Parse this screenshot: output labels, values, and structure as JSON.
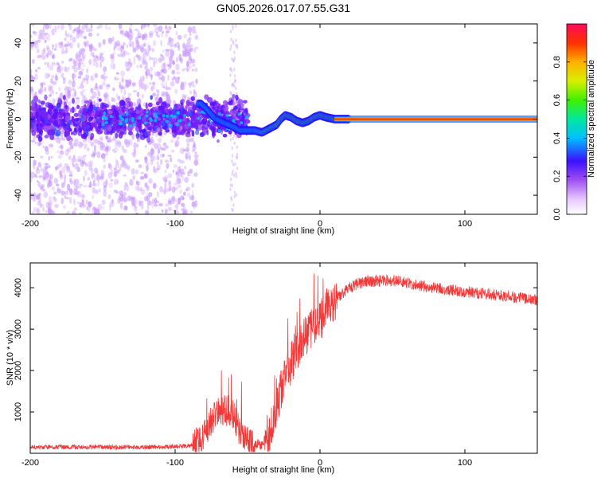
{
  "figure": {
    "title": "GN05.2026.017.07.55.G31"
  },
  "chart_data": [
    {
      "type": "heatmap",
      "name": "spectrogram",
      "xlabel": "Height of straight line (km)",
      "ylabel": "Frequency (Hz)",
      "xlim": [
        -200,
        150
      ],
      "ylim": [
        -50,
        50
      ],
      "xticks": [
        -200,
        -100,
        0,
        100
      ],
      "yticks": [
        -40,
        -20,
        0,
        20,
        40
      ],
      "ridge_track": [
        {
          "x": -82,
          "y": 8
        },
        {
          "x": -78,
          "y": 5
        },
        {
          "x": -72,
          "y": 0
        },
        {
          "x": -66,
          "y": -2
        },
        {
          "x": -60,
          "y": -4
        },
        {
          "x": -55,
          "y": -6
        },
        {
          "x": -50,
          "y": -6
        },
        {
          "x": -45,
          "y": -6
        },
        {
          "x": -40,
          "y": -7
        },
        {
          "x": -35,
          "y": -5
        },
        {
          "x": -30,
          "y": -3
        },
        {
          "x": -27,
          "y": 0
        },
        {
          "x": -24,
          "y": 2
        },
        {
          "x": -20,
          "y": 1
        },
        {
          "x": -16,
          "y": -1
        },
        {
          "x": -12,
          "y": -2
        },
        {
          "x": -8,
          "y": -1
        },
        {
          "x": -4,
          "y": 1
        },
        {
          "x": 0,
          "y": 2
        },
        {
          "x": 4,
          "y": 1
        },
        {
          "x": 10,
          "y": 0
        },
        {
          "x": 20,
          "y": 0
        },
        {
          "x": 150,
          "y": 0
        }
      ],
      "colorbar": {
        "label": "Normalized spectral amplitude",
        "range": [
          0.0,
          1.0
        ],
        "ticks": [
          "0.0",
          "0.2",
          "0.4",
          "0.6",
          "0.8"
        ]
      }
    },
    {
      "type": "line",
      "name": "snr",
      "xlabel": "Height of straight line (km)",
      "ylabel": "SNR (10 * v/v)",
      "xlim": [
        -200,
        150
      ],
      "ylim": [
        0,
        4600
      ],
      "xticks": [
        -200,
        -100,
        0,
        100
      ],
      "yticks": [
        1000,
        2000,
        3000,
        4000
      ],
      "color": "#f03a3a",
      "envelope": [
        {
          "x": -200,
          "y": 150
        },
        {
          "x": -150,
          "y": 150
        },
        {
          "x": -110,
          "y": 150
        },
        {
          "x": -90,
          "y": 180
        },
        {
          "x": -80,
          "y": 400
        },
        {
          "x": -75,
          "y": 800
        },
        {
          "x": -70,
          "y": 1000
        },
        {
          "x": -65,
          "y": 1050
        },
        {
          "x": -60,
          "y": 950
        },
        {
          "x": -55,
          "y": 500
        },
        {
          "x": -50,
          "y": 300
        },
        {
          "x": -45,
          "y": 250
        },
        {
          "x": -40,
          "y": 200
        },
        {
          "x": -35,
          "y": 500
        },
        {
          "x": -30,
          "y": 1200
        },
        {
          "x": -25,
          "y": 1700
        },
        {
          "x": -20,
          "y": 2200
        },
        {
          "x": -15,
          "y": 2500
        },
        {
          "x": -10,
          "y": 2800
        },
        {
          "x": -5,
          "y": 3000
        },
        {
          "x": 0,
          "y": 3200
        },
        {
          "x": 5,
          "y": 3500
        },
        {
          "x": 10,
          "y": 3700
        },
        {
          "x": 20,
          "y": 4000
        },
        {
          "x": 30,
          "y": 4150
        },
        {
          "x": 50,
          "y": 4180
        },
        {
          "x": 70,
          "y": 4050
        },
        {
          "x": 100,
          "y": 3900
        },
        {
          "x": 130,
          "y": 3800
        },
        {
          "x": 150,
          "y": 3700
        }
      ]
    }
  ]
}
